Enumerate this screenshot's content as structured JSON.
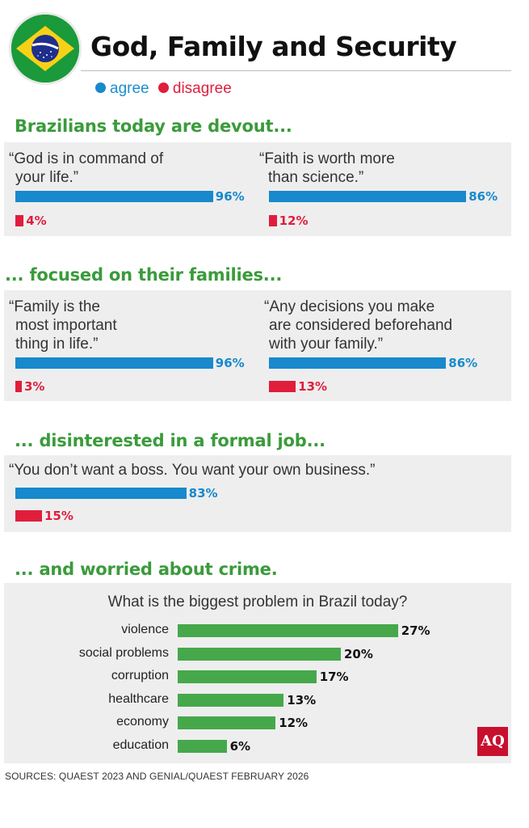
{
  "header": {
    "title": "God, Family and Security",
    "flag": "brazil-flag",
    "legend": {
      "agree": "agree",
      "disagree": "disagree"
    }
  },
  "colors": {
    "agree": "#1789cc",
    "disagree": "#e01e3c",
    "section": "#3a9b3b",
    "crime_bar": "#46a84a",
    "panel": "#eeeeee"
  },
  "sections": [
    {
      "title": "Brazilians today are devout...",
      "items": [
        {
          "quote": [
            "“God is in command of",
            "your life.”"
          ],
          "agree": 96,
          "agree_label": "96%",
          "disagree": 4,
          "disagree_label": "4%"
        },
        {
          "quote": [
            "“Faith is worth more",
            "than science.”"
          ],
          "agree": 86,
          "agree_label": "86%",
          "disagree": 12,
          "disagree_label": "12%"
        }
      ]
    },
    {
      "title": "... focused on their families...",
      "items": [
        {
          "quote": [
            "“Family is the",
            "most important",
            "thing in life.”"
          ],
          "agree": 96,
          "agree_label": "96%",
          "disagree": 3,
          "disagree_label": "3%"
        },
        {
          "quote": [
            "“Any decisions you make",
            "are considered beforehand",
            "with your family.”"
          ],
          "agree": 86,
          "agree_label": "86%",
          "disagree": 13,
          "disagree_label": "13%"
        }
      ]
    },
    {
      "title": "... disinterested in a formal job...",
      "items": [
        {
          "quote": [
            "“You don’t want a boss.  You want your own business.”"
          ],
          "agree": 83,
          "agree_label": "83%",
          "disagree": 15,
          "disagree_label": "15%"
        }
      ]
    }
  ],
  "crime": {
    "title": "... and worried about crime.",
    "question": "What is the biggest problem in Brazil today?"
  },
  "chart_data": {
    "type": "bar",
    "orientation": "horizontal",
    "title": "What is the biggest problem in Brazil today?",
    "categories": [
      "violence",
      "social problems",
      "corruption",
      "healthcare",
      "economy",
      "education"
    ],
    "values": [
      27,
      20,
      17,
      13,
      12,
      6
    ],
    "value_labels": [
      "27%",
      "20%",
      "17%",
      "13%",
      "12%",
      "6%"
    ],
    "xlabel": "",
    "ylabel": "",
    "unit": "%",
    "xlim": [
      0,
      30
    ]
  },
  "logo": "AQ",
  "sources": "SOURCES: QUAEST 2023 AND GENIAL/QUAEST FEBRUARY 2026"
}
